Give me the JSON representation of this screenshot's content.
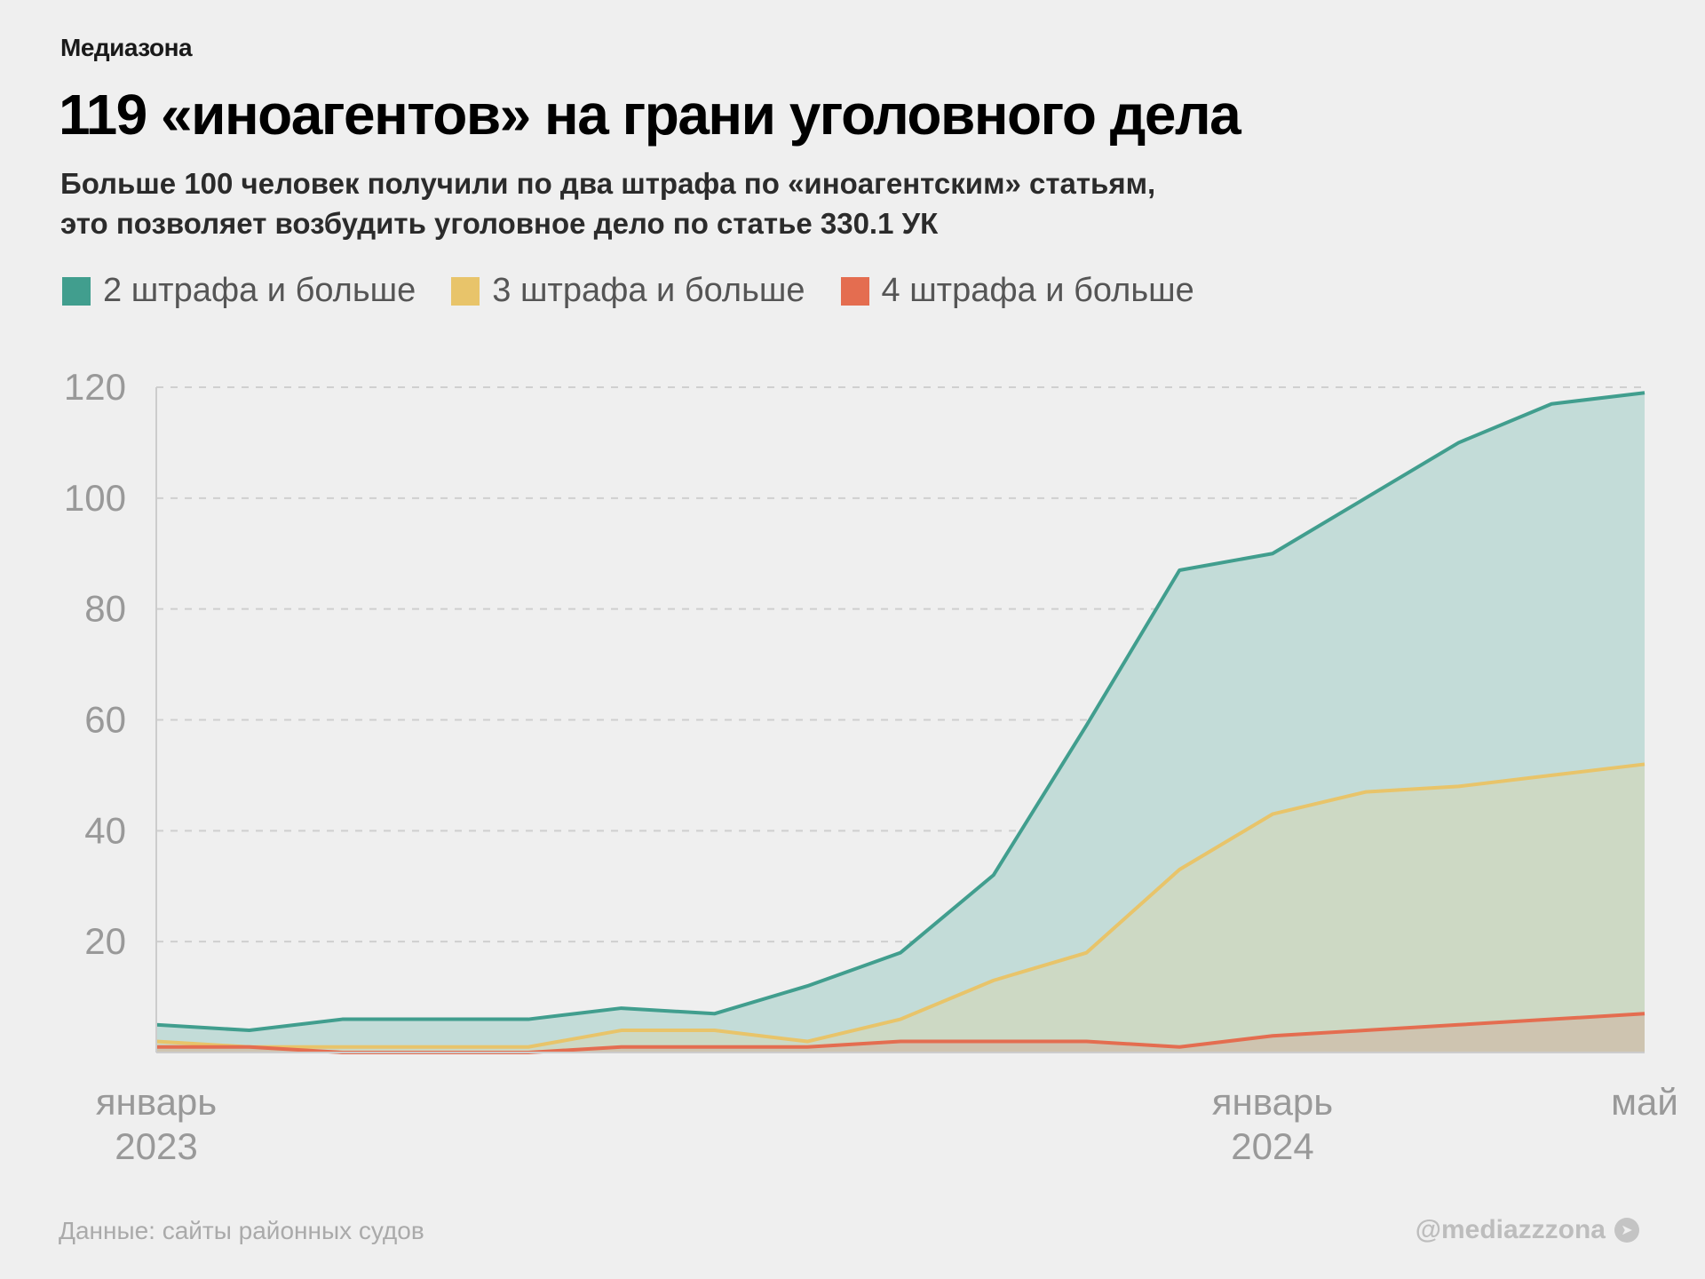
{
  "header": {
    "brand": "Медиазона",
    "title": "119 «иноагентов» на грани уголовного дела",
    "subtitle_line1": "Больше 100 человек получили по два штрафа по «иноагентским» статьям,",
    "subtitle_line2": "это позволяет возбудить уголовное дело по статье 330.1 УК"
  },
  "footer": {
    "source": "Данные: сайты районных судов",
    "handle": "@mediazzzona",
    "handle_icon": "telegram-icon"
  },
  "chart_data": {
    "type": "area",
    "title": "119 «иноагентов» на грани уголовного дела",
    "xlabel": "",
    "ylabel": "",
    "ylim": [
      0,
      120
    ],
    "yticks": [
      "20",
      "40",
      "60",
      "80",
      "100",
      "120"
    ],
    "ytick_values": [
      20,
      40,
      60,
      80,
      100,
      120
    ],
    "grid": true,
    "legend_position": "top-left",
    "x": [
      "2023-01",
      "2023-02",
      "2023-03",
      "2023-04",
      "2023-05",
      "2023-06",
      "2023-07",
      "2023-08",
      "2023-09",
      "2023-10",
      "2023-11",
      "2023-12",
      "2024-01",
      "2024-02",
      "2024-03",
      "2024-04",
      "2024-05"
    ],
    "xtick_labels": [
      {
        "index": 0,
        "line1": "январь",
        "line2": "2023"
      },
      {
        "index": 12,
        "line1": "январь",
        "line2": "2024"
      },
      {
        "index": 16,
        "line1": "май",
        "line2": ""
      }
    ],
    "series": [
      {
        "name": "2 штрафа и больше",
        "color": "#419e8e",
        "fill": "#c3dcd8",
        "values": [
          5,
          4,
          6,
          6,
          6,
          8,
          7,
          12,
          18,
          32,
          59,
          87,
          90,
          100,
          110,
          117,
          119
        ]
      },
      {
        "name": "3 штрафа и больше",
        "color": "#e8c46a",
        "fill": "#cdd9c4",
        "values": [
          2,
          1,
          1,
          1,
          1,
          4,
          4,
          2,
          6,
          13,
          18,
          33,
          43,
          47,
          48,
          50,
          52
        ]
      },
      {
        "name": "4 штрафа и больше",
        "color": "#e46d50",
        "fill": "#cec4b0",
        "values": [
          1,
          1,
          0,
          0,
          0,
          1,
          1,
          1,
          2,
          2,
          2,
          1,
          3,
          4,
          5,
          6,
          7
        ]
      }
    ]
  }
}
